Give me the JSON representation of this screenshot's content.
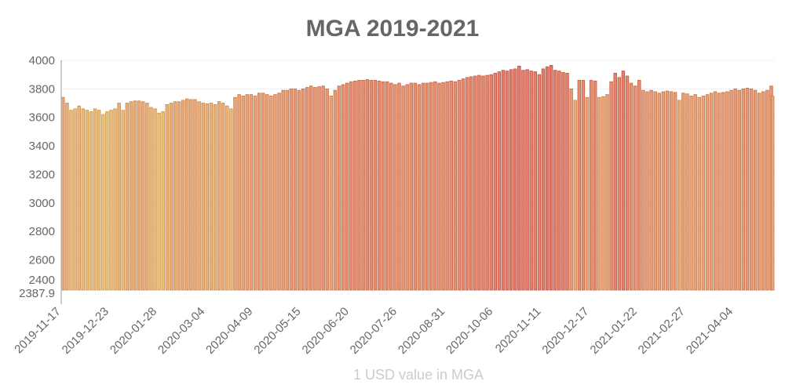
{
  "chart_data": {
    "type": "bar",
    "title": "MGA 2019-2021",
    "xlabel": "1 USD value in MGA",
    "ylabel": "",
    "ylim": [
      2387.9,
      4000
    ],
    "y_ticks": [
      "2387.9",
      "2400",
      "2600",
      "2800",
      "3000",
      "3200",
      "3400",
      "3600",
      "3800",
      "4000"
    ],
    "x_ticks": [
      "2019-11-17",
      "2019-12-23",
      "2020-01-28",
      "2020-03-04",
      "2020-04-09",
      "2020-05-15",
      "2020-06-20",
      "2020-07-26",
      "2020-08-31",
      "2020-10-06",
      "2020-11-11",
      "2020-12-17",
      "2021-01-22",
      "2021-02-27",
      "2021-04-04"
    ],
    "x_range": [
      "2019-11-17",
      "2021-05-05"
    ],
    "x_step_days": 3,
    "grid": "horizontal",
    "legend": "none",
    "colors": {
      "low": "#e2b552",
      "mid": "#e0874f",
      "high": "#d8503e"
    },
    "values": [
      3740,
      3700,
      3650,
      3660,
      3680,
      3660,
      3650,
      3640,
      3660,
      3650,
      3620,
      3640,
      3650,
      3660,
      3700,
      3650,
      3700,
      3710,
      3715,
      3715,
      3710,
      3700,
      3670,
      3660,
      3630,
      3640,
      3690,
      3700,
      3710,
      3710,
      3720,
      3730,
      3725,
      3725,
      3710,
      3700,
      3695,
      3700,
      3690,
      3710,
      3700,
      3680,
      3660,
      3740,
      3760,
      3750,
      3760,
      3760,
      3750,
      3770,
      3770,
      3760,
      3750,
      3760,
      3770,
      3790,
      3790,
      3800,
      3800,
      3790,
      3800,
      3810,
      3820,
      3810,
      3815,
      3820,
      3800,
      3750,
      3790,
      3820,
      3830,
      3840,
      3850,
      3855,
      3860,
      3860,
      3865,
      3860,
      3860,
      3855,
      3850,
      3850,
      3840,
      3830,
      3840,
      3820,
      3830,
      3840,
      3840,
      3830,
      3840,
      3840,
      3845,
      3850,
      3840,
      3845,
      3850,
      3855,
      3850,
      3860,
      3870,
      3880,
      3885,
      3890,
      3895,
      3890,
      3895,
      3900,
      3910,
      3920,
      3930,
      3925,
      3935,
      3940,
      3960,
      3930,
      3935,
      3925,
      3920,
      3900,
      3940,
      3955,
      3965,
      3930,
      3925,
      3915,
      3910,
      3800,
      3720,
      3860,
      3860,
      3740,
      3860,
      3855,
      3740,
      3745,
      3760,
      3850,
      3910,
      3880,
      3925,
      3890,
      3840,
      3820,
      3860,
      3790,
      3780,
      3790,
      3780,
      3770,
      3780,
      3785,
      3780,
      3775,
      3720,
      3770,
      3765,
      3750,
      3760,
      3740,
      3750,
      3760,
      3770,
      3780,
      3770,
      3775,
      3780,
      3790,
      3800,
      3790,
      3800,
      3805,
      3800,
      3790,
      3770,
      3780,
      3790,
      3820,
      3750
    ]
  }
}
